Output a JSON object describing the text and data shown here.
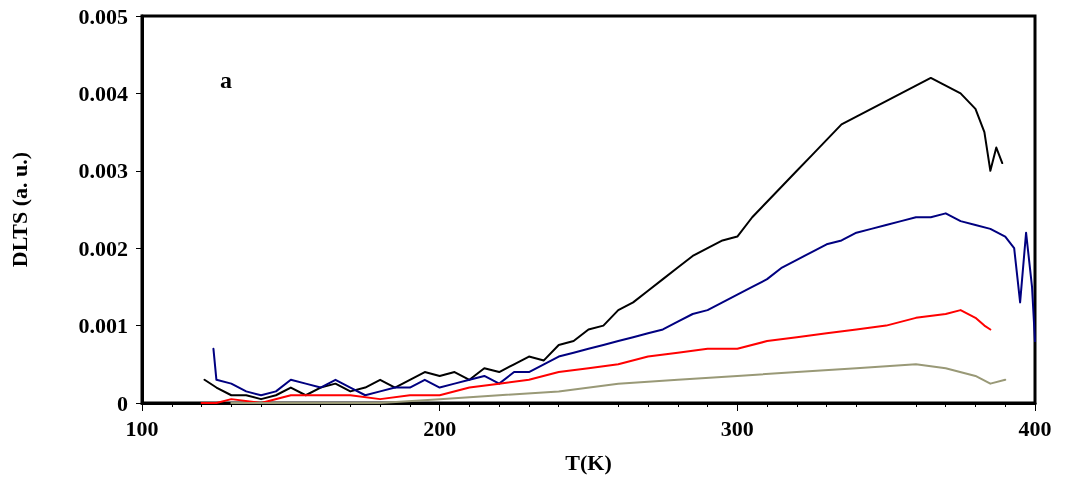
{
  "chart_data": {
    "type": "line",
    "xlabel": "T(K)",
    "ylabel": "DLTS (a. u.)",
    "annotations": [
      "a"
    ],
    "xlim": [
      100,
      400
    ],
    "xticks": [
      100,
      200,
      300,
      400
    ],
    "ylim": [
      0,
      0.005
    ],
    "yticks": [
      0,
      0.001,
      0.002,
      0.003,
      0.004,
      0.005
    ],
    "grid": false,
    "marker": "none",
    "line_style": "solid",
    "series": [
      {
        "color": "#000000",
        "x": [
          121,
          125,
          130,
          135,
          140,
          145,
          150,
          155,
          160,
          165,
          170,
          175,
          180,
          185,
          190,
          195,
          200,
          205,
          210,
          215,
          220,
          225,
          230,
          235,
          240,
          245,
          250,
          255,
          260,
          265,
          270,
          275,
          280,
          285,
          290,
          295,
          300,
          305,
          310,
          315,
          320,
          325,
          330,
          335,
          340,
          345,
          350,
          355,
          360,
          365,
          370,
          375,
          380,
          383,
          385,
          387,
          389
        ],
        "values": [
          0.0003,
          0.0002,
          0.0001,
          0.0001,
          5e-05,
          0.0001,
          0.0002,
          0.0001,
          0.0002,
          0.00025,
          0.00015,
          0.0002,
          0.0003,
          0.0002,
          0.0003,
          0.0004,
          0.00035,
          0.0004,
          0.0003,
          0.00045,
          0.0004,
          0.0005,
          0.0006,
          0.00055,
          0.00075,
          0.0008,
          0.00095,
          0.001,
          0.0012,
          0.0013,
          0.00145,
          0.0016,
          0.00175,
          0.0019,
          0.002,
          0.0021,
          0.00215,
          0.0024,
          0.0026,
          0.0028,
          0.003,
          0.0032,
          0.0034,
          0.0036,
          0.0037,
          0.0038,
          0.0039,
          0.004,
          0.0041,
          0.0042,
          0.0041,
          0.004,
          0.0038,
          0.0035,
          0.003,
          0.0033,
          0.0031
        ]
      },
      {
        "color": "#000080",
        "x": [
          124,
          125,
          130,
          135,
          140,
          145,
          150,
          155,
          160,
          165,
          170,
          175,
          180,
          185,
          190,
          195,
          200,
          205,
          210,
          215,
          220,
          225,
          230,
          235,
          240,
          245,
          250,
          255,
          260,
          265,
          270,
          275,
          280,
          285,
          290,
          295,
          300,
          305,
          310,
          315,
          320,
          325,
          330,
          335,
          340,
          345,
          350,
          355,
          360,
          365,
          370,
          375,
          380,
          385,
          390,
          393,
          395,
          397,
          399,
          400
        ],
        "values": [
          0.0007,
          0.0003,
          0.00025,
          0.00015,
          0.0001,
          0.00015,
          0.0003,
          0.00025,
          0.0002,
          0.0003,
          0.0002,
          0.0001,
          0.00015,
          0.0002,
          0.0002,
          0.0003,
          0.0002,
          0.00025,
          0.0003,
          0.00035,
          0.00025,
          0.0004,
          0.0004,
          0.0005,
          0.0006,
          0.00065,
          0.0007,
          0.00075,
          0.0008,
          0.00085,
          0.0009,
          0.00095,
          0.00105,
          0.00115,
          0.0012,
          0.0013,
          0.0014,
          0.0015,
          0.0016,
          0.00175,
          0.00185,
          0.00195,
          0.00205,
          0.0021,
          0.0022,
          0.00225,
          0.0023,
          0.00235,
          0.0024,
          0.0024,
          0.00245,
          0.00235,
          0.0023,
          0.00225,
          0.00215,
          0.002,
          0.0013,
          0.0022,
          0.0015,
          0.0008
        ]
      },
      {
        "color": "#ff0000",
        "x": [
          120,
          125,
          130,
          140,
          150,
          160,
          170,
          180,
          190,
          200,
          210,
          220,
          230,
          240,
          250,
          260,
          270,
          280,
          290,
          300,
          310,
          320,
          330,
          340,
          350,
          360,
          370,
          375,
          380,
          383,
          385
        ],
        "values": [
          0,
          0,
          5e-05,
          0,
          0.0001,
          0.0001,
          0.0001,
          5e-05,
          0.0001,
          0.0001,
          0.0002,
          0.00025,
          0.0003,
          0.0004,
          0.00045,
          0.0005,
          0.0006,
          0.00065,
          0.0007,
          0.0007,
          0.0008,
          0.00085,
          0.0009,
          0.00095,
          0.001,
          0.0011,
          0.00115,
          0.0012,
          0.0011,
          0.001,
          0.00095
        ]
      },
      {
        "color": "#999977",
        "x": [
          130,
          140,
          160,
          180,
          200,
          220,
          240,
          260,
          280,
          300,
          320,
          340,
          360,
          370,
          380,
          385,
          390
        ],
        "values": [
          0,
          0,
          0,
          0,
          5e-05,
          0.0001,
          0.00015,
          0.00025,
          0.0003,
          0.00035,
          0.0004,
          0.00045,
          0.0005,
          0.00045,
          0.00035,
          0.00025,
          0.0003
        ]
      }
    ]
  }
}
